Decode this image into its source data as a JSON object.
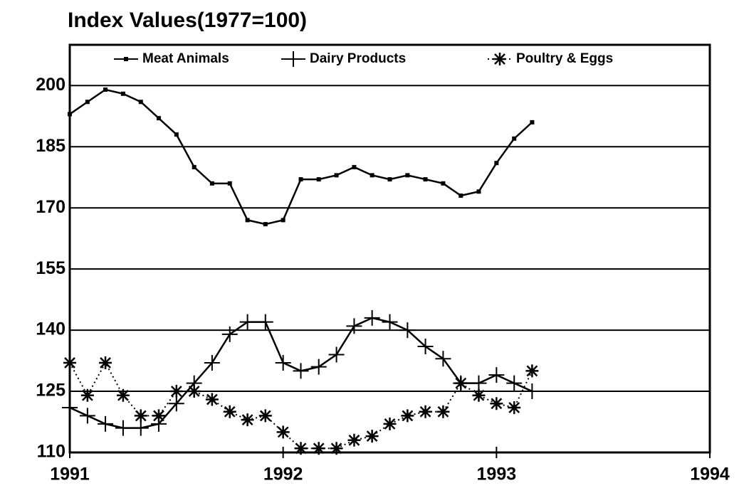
{
  "chart_data": {
    "type": "line",
    "title": "Index Values(1977=100)",
    "x": [
      1991.0,
      1991.083,
      1991.167,
      1991.25,
      1991.333,
      1991.417,
      1991.5,
      1991.583,
      1991.667,
      1991.75,
      1991.833,
      1991.917,
      1992.0,
      1992.083,
      1992.167,
      1992.25,
      1992.333,
      1992.417,
      1992.5,
      1992.583,
      1992.667,
      1992.75,
      1992.833,
      1992.917,
      1993.0,
      1993.083,
      1993.167
    ],
    "series": [
      {
        "name": "Meat Animals",
        "color": "#000000",
        "marker": "square",
        "dash": "solid",
        "values": [
          193,
          196,
          199,
          198,
          196,
          192,
          188,
          180,
          176,
          176,
          167,
          166,
          167,
          177,
          177,
          178,
          180,
          178,
          177,
          178,
          177,
          176,
          173,
          174,
          181,
          187,
          191
        ]
      },
      {
        "name": "Dairy Products",
        "color": "#000000",
        "marker": "plus",
        "dash": "solid",
        "values": [
          121,
          119,
          117,
          116,
          116,
          117,
          122,
          127,
          132,
          139,
          142,
          142,
          132,
          130,
          131,
          134,
          141,
          143,
          142,
          140,
          136,
          133,
          127,
          127,
          129,
          127,
          125
        ]
      },
      {
        "name": "Poultry & Eggs",
        "color": "#000000",
        "marker": "asterisk",
        "dash": "dotted",
        "values": [
          132,
          124,
          132,
          124,
          119,
          119,
          125,
          125,
          123,
          120,
          118,
          119,
          115,
          111,
          111,
          111,
          113,
          114,
          117,
          119,
          120,
          120,
          127,
          124,
          122,
          121,
          130
        ]
      }
    ],
    "xlim": [
      1991,
      1994
    ],
    "xticks": [
      1991,
      1992,
      1993,
      1994
    ],
    "ylim": [
      110,
      210
    ],
    "yticks": [
      110,
      125,
      140,
      155,
      170,
      185,
      200
    ],
    "grid": true,
    "legend": "top"
  }
}
